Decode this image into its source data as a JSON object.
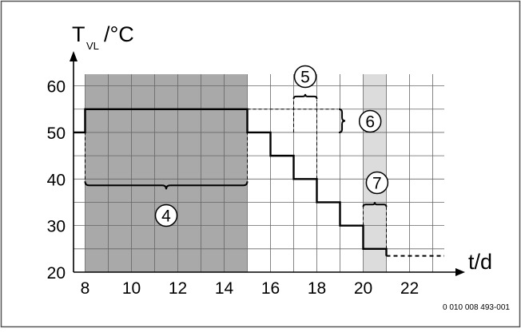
{
  "chart_data": {
    "type": "line",
    "ylabel": {
      "main": "T",
      "sub": "VL",
      "unit": "/°C"
    },
    "xlabel": "t/d",
    "xlim": [
      7.5,
      23.5
    ],
    "ylim": [
      20,
      62.5
    ],
    "x_ticks": [
      {
        "v": 8,
        "label": "8"
      },
      {
        "v": 10,
        "label": "10"
      },
      {
        "v": 12,
        "label": "12"
      },
      {
        "v": 14,
        "label": "14"
      },
      {
        "v": 16,
        "label": "16"
      },
      {
        "v": 18,
        "label": "18"
      },
      {
        "v": 20,
        "label": "20"
      },
      {
        "v": 22,
        "label": "22"
      }
    ],
    "y_ticks": [
      {
        "v": 20,
        "label": "20"
      },
      {
        "v": 30,
        "label": "30"
      },
      {
        "v": 40,
        "label": "40"
      },
      {
        "v": 50,
        "label": "50"
      },
      {
        "v": 60,
        "label": "60"
      }
    ],
    "grid": true,
    "steps": [
      [
        7.5,
        50
      ],
      [
        8,
        50
      ],
      [
        8,
        55
      ],
      [
        15,
        55
      ],
      [
        15,
        50
      ],
      [
        16,
        50
      ],
      [
        16,
        45
      ],
      [
        17,
        45
      ],
      [
        17,
        40
      ],
      [
        18,
        40
      ],
      [
        18,
        35
      ],
      [
        19,
        35
      ],
      [
        19,
        30
      ],
      [
        20,
        30
      ],
      [
        20,
        25
      ],
      [
        21,
        25
      ],
      [
        21,
        23.5
      ]
    ],
    "tail": [
      [
        21,
        23.5
      ],
      [
        23.5,
        23.5
      ]
    ],
    "shaded_regions": [
      {
        "x0": 8,
        "x1": 15,
        "shade": "dark"
      },
      {
        "x0": 20,
        "x1": 21,
        "shade": "light"
      }
    ],
    "annotations": [
      {
        "label": "4"
      },
      {
        "label": "5"
      },
      {
        "label": "6"
      },
      {
        "label": "7"
      }
    ],
    "figure_code": "0 010 008 493-001"
  },
  "colors": {
    "dark_shade": "#a9a9aa",
    "light_shade": "#dcdcdc",
    "grid": "#666666",
    "line": "#000000",
    "frame": "#555555"
  }
}
